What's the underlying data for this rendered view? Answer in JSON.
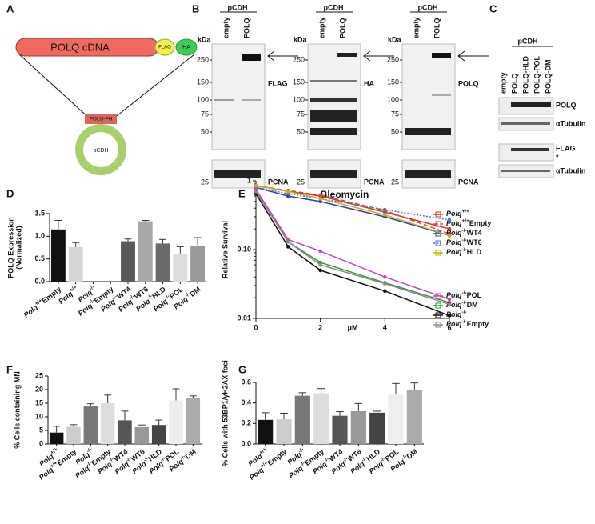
{
  "figure": {
    "panel_labels": [
      "A",
      "B",
      "C",
      "D",
      "E",
      "F",
      "G"
    ],
    "A": {
      "cdna": "POLQ cDNA",
      "flag": "FLAG",
      "ha": "HA",
      "insert": "POLQ-FH",
      "vector": "pCDH"
    },
    "B": {
      "blots": [
        {
          "vector": "pCDH",
          "lanes": [
            "empty",
            "POLQ"
          ],
          "kda": "kDa",
          "markers": [
            250,
            150,
            100,
            75,
            50
          ],
          "antibody": "FLAG",
          "loading_marker": 25,
          "loading": "PCNA"
        },
        {
          "vector": "pCDH",
          "lanes": [
            "empty",
            "POLQ"
          ],
          "kda": "kDa",
          "markers": [
            250,
            150,
            100,
            75,
            50
          ],
          "antibody": "HA",
          "loading_marker": 25,
          "loading": "PCNA"
        },
        {
          "vector": "pCDH",
          "lanes": [
            "empty",
            "POLQ"
          ],
          "kda": "kDa",
          "markers": [
            250,
            150,
            100,
            75,
            50
          ],
          "antibody": "POLQ",
          "loading_marker": 25,
          "loading": "PCNA"
        }
      ]
    },
    "C": {
      "vector": "pCDH",
      "lanes": [
        "empty",
        "POLQ",
        "POLQ-HLD",
        "POLQ-POL",
        "POLQ-DM"
      ],
      "rows": [
        "POLQ",
        "αTubulin",
        "FLAG",
        "*",
        "αTubulin"
      ]
    }
  },
  "chart_data": [
    {
      "type": "bar",
      "ylabel": [
        "POLQ Expression",
        "(Normalized)"
      ],
      "categories": [
        {
          "name": "Polq",
          "sup": "+/+",
          "tag": "Empty"
        },
        {
          "name": "Polq",
          "sup": "+/+"
        },
        {
          "name": "Polq",
          "sup": "-/-"
        },
        {
          "name": "Polq",
          "sup": "-/-",
          "tag": "Empty"
        },
        {
          "name": "Polq",
          "sup": "-/-",
          "tag": "WT4"
        },
        {
          "name": "Polq",
          "sup": "-/-",
          "tag": "WT6"
        },
        {
          "name": "Polq",
          "sup": "-/-",
          "tag": "HLD"
        },
        {
          "name": "Polq",
          "sup": "-/-",
          "tag": "POL"
        },
        {
          "name": "Polq",
          "sup": "-/-",
          "tag": "DM"
        }
      ],
      "values": [
        1.15,
        0.76,
        null,
        null,
        0.89,
        1.33,
        0.84,
        0.62,
        0.79
      ],
      "errors": [
        0.2,
        0.1,
        null,
        null,
        0.05,
        0.02,
        0.09,
        0.15,
        0.18
      ],
      "colors": [
        "#111111",
        "#d6d6d6",
        "#999999",
        "#cccccc",
        "#5a5a5a",
        "#a8a8a8",
        "#6a6a6a",
        "#dddddd",
        "#9a9a9a"
      ],
      "ylim": [
        0,
        1.5
      ],
      "yticks": [
        {
          "value": 0,
          "label": "0.0"
        },
        0.5,
        {
          "value": 1,
          "label": "1.0"
        },
        1.5
      ]
    },
    {
      "type": "line",
      "title": "Bleomycin",
      "ylabel": "Relative Survival",
      "xlabel": "μM",
      "log_y": true,
      "x": [
        0,
        1,
        2,
        4,
        6
      ],
      "xlim": [
        0,
        6
      ],
      "xticks": [
        0,
        2,
        4,
        6
      ],
      "ylim": [
        0.01,
        1
      ],
      "yticks": [
        0.01,
        {
          "value": 0.1,
          "label": "0.10"
        },
        1
      ],
      "series": [
        {
          "name": {
            "name": "Polq",
            "sup": "+/+"
          },
          "color": "#e0301e",
          "style": "solid",
          "values": [
            0.85,
            0.7,
            0.6,
            0.35,
            0.2
          ]
        },
        {
          "name": {
            "name": "Polq",
            "sup": "+/+",
            "tag": "Empty"
          },
          "color": "#c0504d",
          "style": "dashed",
          "values": [
            0.85,
            0.72,
            0.62,
            0.37,
            0.17
          ]
        },
        {
          "name": {
            "name": "Polq",
            "sup": "-/-",
            "tag": "WT4"
          },
          "color": "#1f3fbf",
          "style": "solid",
          "values": [
            0.8,
            0.6,
            0.5,
            0.3,
            0.16
          ]
        },
        {
          "name": {
            "name": "Polq",
            "sup": "-/-",
            "tag": "WT6"
          },
          "color": "#4a6fd0",
          "style": "dotted",
          "values": [
            0.8,
            0.65,
            0.55,
            0.38,
            0.27
          ]
        },
        {
          "name": {
            "name": "Polq",
            "sup": "-/-",
            "tag": "HLD"
          },
          "color": "#c9b000",
          "style": "solid",
          "values": [
            0.85,
            0.7,
            0.55,
            0.32,
            0.16
          ]
        },
        {
          "name": {
            "name": "Polq",
            "sup": "-/-",
            "tag": "POL"
          },
          "color": "#d040c8",
          "style": "solid",
          "values": [
            0.75,
            0.14,
            0.095,
            0.04,
            0.019
          ]
        },
        {
          "name": {
            "name": "Polq",
            "sup": "-/-",
            "tag": "DM"
          },
          "color": "#2ca02c",
          "style": "solid",
          "values": [
            0.7,
            0.13,
            0.065,
            0.033,
            0.017
          ]
        },
        {
          "name": {
            "name": "Polq",
            "sup": "-/-"
          },
          "color": "#111111",
          "style": "solid",
          "values": [
            0.65,
            0.11,
            0.05,
            0.025,
            0.011
          ]
        },
        {
          "name": {
            "name": "Polq",
            "sup": "-/-",
            "tag": "Empty"
          },
          "color": "#888888",
          "style": "solid",
          "values": [
            0.7,
            0.13,
            0.06,
            0.032,
            0.016
          ]
        }
      ]
    },
    {
      "type": "bar",
      "ylabel": "% Cells containing MN",
      "categories": [
        {
          "name": "Polq",
          "sup": "+/+"
        },
        {
          "name": "Polq",
          "sup": "+/+",
          "tag": "Empty"
        },
        {
          "name": "Polq",
          "sup": "-/-"
        },
        {
          "name": "Polq",
          "sup": "-/-",
          "tag": "Empty"
        },
        {
          "name": "Polq",
          "sup": "-/-",
          "tag": "WT4"
        },
        {
          "name": "Polq",
          "sup": "-/-",
          "tag": "WT6"
        },
        {
          "name": "Polq",
          "sup": "-/-",
          "tag": "HLD"
        },
        {
          "name": "Polq",
          "sup": "-/-",
          "tag": "POL"
        },
        {
          "name": "Polq",
          "sup": "-/-",
          "tag": "DM"
        }
      ],
      "values": [
        4.2,
        6.3,
        13.8,
        15,
        8.7,
        6.2,
        7,
        16,
        17
      ],
      "errors": [
        2.3,
        0.8,
        1,
        3,
        3.4,
        0.8,
        1.8,
        4.3,
        0.7
      ],
      "colors": [
        "#111111",
        "#cccccc",
        "#777777",
        "#dddddd",
        "#555555",
        "#999999",
        "#444444",
        "#eeeeee",
        "#aaaaaa"
      ],
      "ylim": [
        0,
        25
      ],
      "yticks": [
        0,
        5,
        10,
        15,
        20,
        25
      ]
    },
    {
      "type": "bar",
      "ylabel": "% Cells with 53BP1/γH2AX foci",
      "categories": [
        {
          "name": "Polq",
          "sup": "+/+"
        },
        {
          "name": "Polq",
          "sup": "+/+",
          "tag": "Empty"
        },
        {
          "name": "Polq",
          "sup": "-/-"
        },
        {
          "name": "Polq",
          "sup": "-/-",
          "tag": "Empty"
        },
        {
          "name": "Polq",
          "sup": "-/-",
          "tag": "WT4"
        },
        {
          "name": "Polq",
          "sup": "-/-",
          "tag": "WT6"
        },
        {
          "name": "Polq",
          "sup": "-/-",
          "tag": "HLD"
        },
        {
          "name": "Polq",
          "sup": "-/-",
          "tag": "POL"
        },
        {
          "name": "Polq",
          "sup": "-/-",
          "tag": "DM"
        }
      ],
      "values": [
        0.235,
        0.24,
        0.47,
        0.495,
        0.275,
        0.32,
        0.305,
        0.49,
        0.525
      ],
      "errors": [
        0.07,
        0.06,
        0.03,
        0.045,
        0.04,
        0.075,
        0.015,
        0.1,
        0.07
      ],
      "colors": [
        "#111111",
        "#cccccc",
        "#777777",
        "#dddddd",
        "#555555",
        "#999999",
        "#444444",
        "#eeeeee",
        "#aaaaaa"
      ],
      "ylim": [
        0,
        0.6
      ],
      "yticks": [
        {
          "value": 0,
          "label": "0.0"
        },
        0.2,
        0.4,
        0.6
      ]
    }
  ]
}
